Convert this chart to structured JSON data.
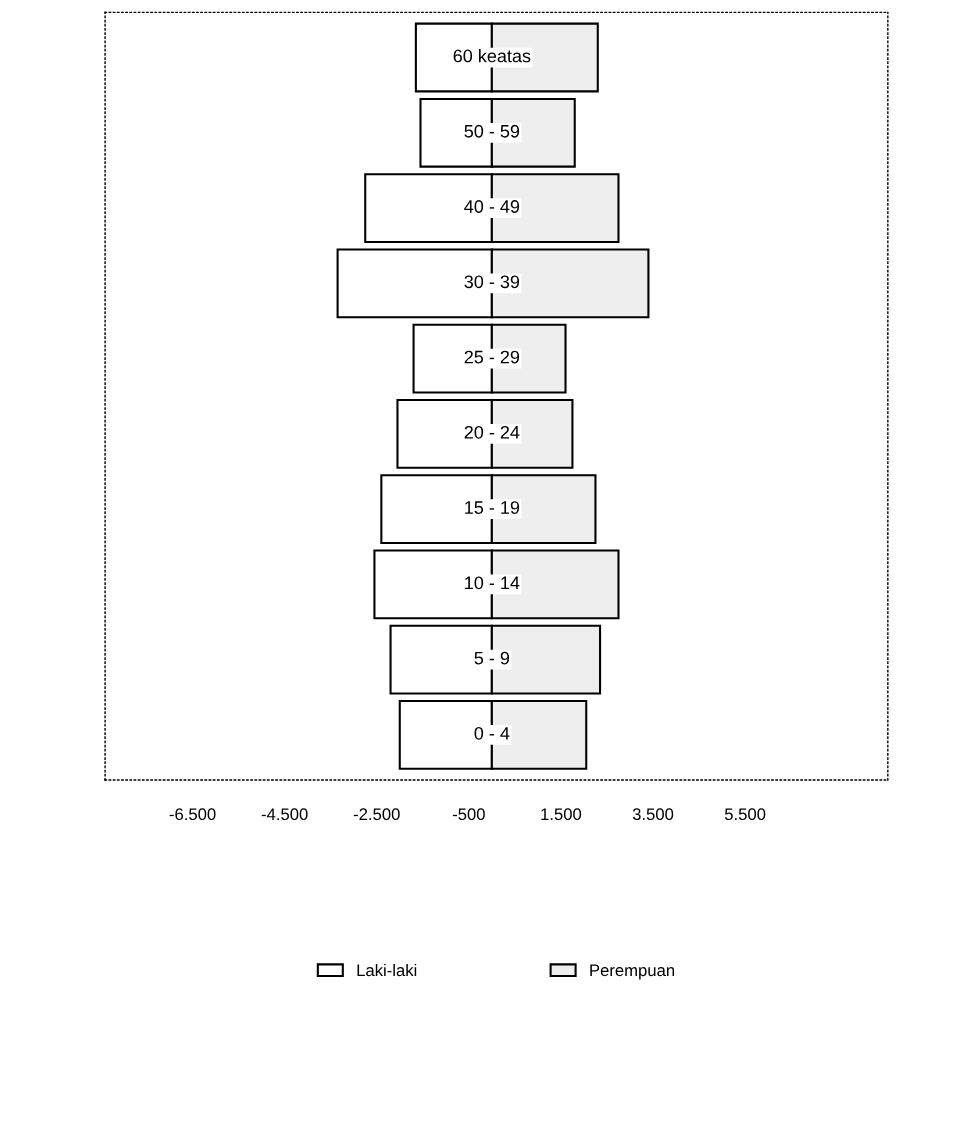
{
  "chart_data": {
    "type": "bar",
    "orientation": "horizontal",
    "categories": [
      "60 keatas",
      "50 - 59",
      "40 - 49",
      "30 - 39",
      "25 - 29",
      "20 - 24",
      "15 - 19",
      "10 - 14",
      "5 - 9",
      "0 - 4"
    ],
    "series": [
      {
        "name": "Laki-laki",
        "color": "#ffffff",
        "values": [
          -1650,
          -1550,
          -2750,
          -3350,
          -1700,
          -2050,
          -2400,
          -2550,
          -2200,
          -2000
        ]
      },
      {
        "name": "Perempuan",
        "color": "#eeeeee",
        "values": [
          2300,
          1800,
          2750,
          3400,
          1600,
          1750,
          2250,
          2750,
          2350,
          2050
        ]
      }
    ],
    "xlim": [
      -8400,
      8600
    ],
    "xticks": [
      {
        "value": -6500,
        "label": "-6.500"
      },
      {
        "value": -4500,
        "label": "-4.500"
      },
      {
        "value": -2500,
        "label": "-2.500"
      },
      {
        "value": -500,
        "label": "-500"
      },
      {
        "value": 1500,
        "label": "1.500"
      },
      {
        "value": 3500,
        "label": "3.500"
      },
      {
        "value": 5500,
        "label": "5.500"
      }
    ],
    "stacked": true,
    "grid": false,
    "legend": "bottom"
  }
}
